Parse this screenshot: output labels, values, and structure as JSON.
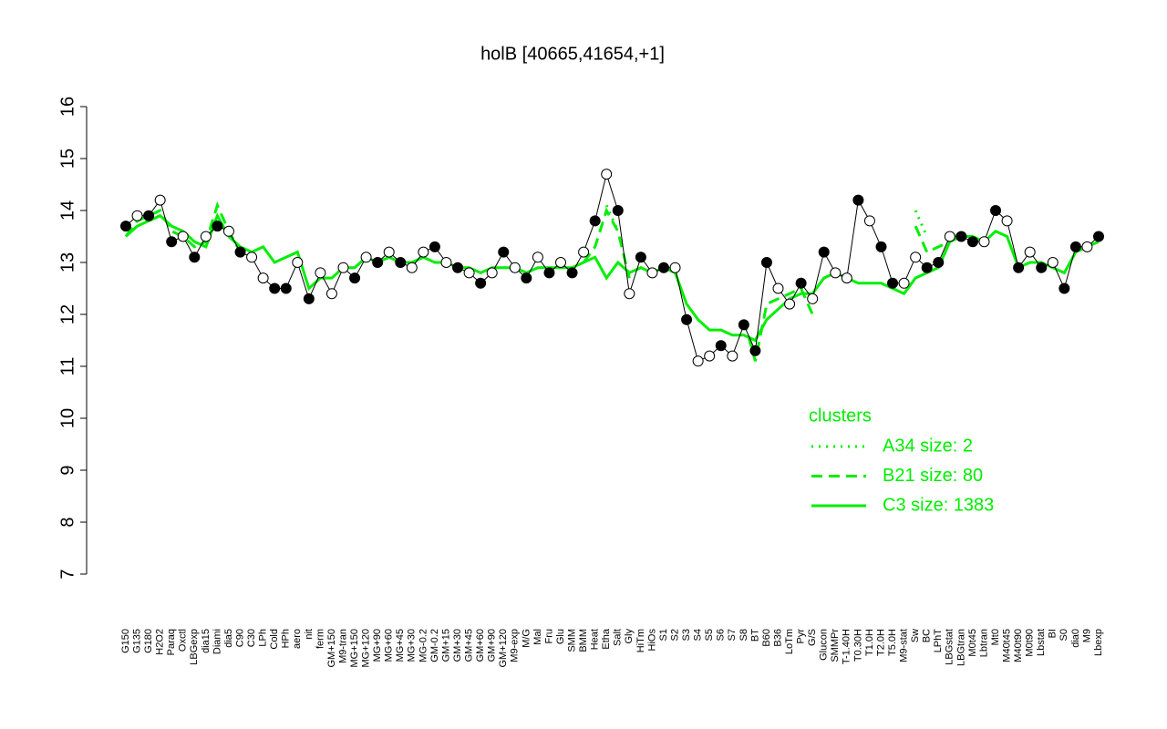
{
  "chart_data": {
    "type": "line",
    "title": "holB [40665,41654,+1]",
    "categories": [
      "G150",
      "G135",
      "G180",
      "H2O2",
      "Paraq",
      "Oxctl",
      "LBGexp",
      "dia15",
      "Diami",
      "dia5",
      "C90",
      "C30",
      "LPh",
      "Cold",
      "HPh",
      "aero",
      "nit",
      "ferm",
      "GM+150",
      "M9-tran",
      "MG+150",
      "MG+120",
      "MG+90",
      "MG+60",
      "MG+45",
      "MG+30",
      "MG-0.2",
      "GM-0.2",
      "GM+15",
      "GM+30",
      "GM+45",
      "GM+60",
      "GM+90",
      "GM+120",
      "M9-exp",
      "M/G",
      "Mal",
      "Fru",
      "Glu",
      "SMM",
      "BMM",
      "Heat",
      "Etha",
      "Salt",
      "Gly",
      "HiTm",
      "HiOs",
      "S1",
      "S2",
      "S3",
      "S4",
      "S5",
      "S6",
      "S7",
      "S8",
      "BT",
      "B60",
      "B36",
      "LoTm",
      "Pyr",
      "G/S",
      "Glucon",
      "SMMPr",
      "T-1.40H",
      "T0.30H",
      "T1.0H",
      "T2.0H",
      "T5.0H",
      "M9-stat",
      "Sw",
      "BC",
      "LPhT",
      "LBGstat",
      "LBGtran",
      "M0t45",
      "Lbtran",
      "Mt0",
      "M40t45",
      "M40t90",
      "M0t90",
      "Lbstat",
      "BI",
      "S0",
      "dia0",
      "M9",
      "Lbexp"
    ],
    "series": [
      {
        "color": "#000000",
        "values": [
          13.7,
          13.9,
          13.9,
          14.2,
          13.4,
          13.5,
          13.1,
          13.5,
          13.7,
          13.6,
          13.2,
          13.1,
          12.7,
          12.5,
          12.5,
          13.0,
          12.3,
          12.8,
          12.4,
          12.9,
          12.7,
          13.1,
          13.0,
          13.2,
          13.0,
          12.9,
          13.2,
          13.3,
          13.0,
          12.9,
          12.8,
          12.6,
          12.8,
          13.2,
          12.9,
          12.7,
          13.1,
          12.8,
          13.0,
          12.8,
          13.2,
          13.8,
          14.7,
          14.0,
          12.4,
          13.1,
          12.8,
          12.9,
          12.9,
          11.9,
          11.1,
          11.2,
          11.4,
          11.2,
          11.8,
          11.3,
          13.0,
          12.5,
          12.2,
          12.6,
          12.3,
          13.2,
          12.8,
          12.7,
          14.2,
          13.8,
          13.3,
          12.6,
          12.6,
          13.1,
          12.9,
          13.0,
          13.5,
          13.5,
          13.4,
          13.4,
          14.0,
          13.8,
          12.9,
          13.2,
          12.9,
          13.0,
          12.5,
          13.3,
          13.3,
          13.5
        ],
        "marker_fills": [
          "#000000",
          "#ffffff",
          "#000000",
          "#ffffff",
          "#000000",
          "#ffffff",
          "#000000",
          "#ffffff",
          "#000000",
          "#ffffff",
          "#000000",
          "#ffffff",
          "#ffffff",
          "#000000",
          "#000000",
          "#ffffff",
          "#000000",
          "#ffffff",
          "#ffffff",
          "#ffffff",
          "#000000",
          "#ffffff",
          "#000000",
          "#ffffff",
          "#000000",
          "#ffffff",
          "#ffffff",
          "#000000",
          "#ffffff",
          "#000000",
          "#ffffff",
          "#000000",
          "#ffffff",
          "#000000",
          "#ffffff",
          "#000000",
          "#ffffff",
          "#000000",
          "#ffffff",
          "#000000",
          "#ffffff",
          "#000000",
          "#ffffff",
          "#000000",
          "#ffffff",
          "#000000",
          "#ffffff",
          "#000000",
          "#ffffff",
          "#000000",
          "#ffffff",
          "#ffffff",
          "#000000",
          "#ffffff",
          "#000000",
          "#000000",
          "#000000",
          "#ffffff",
          "#ffffff",
          "#000000",
          "#ffffff",
          "#000000",
          "#ffffff",
          "#ffffff",
          "#000000",
          "#ffffff",
          "#000000",
          "#000000",
          "#ffffff",
          "#ffffff",
          "#000000",
          "#000000",
          "#ffffff",
          "#000000",
          "#000000",
          "#ffffff",
          "#000000",
          "#ffffff",
          "#000000",
          "#ffffff",
          "#000000",
          "#ffffff",
          "#000000",
          "#000000",
          "#ffffff",
          "#000000"
        ]
      },
      {
        "name": "A34 size: 2",
        "color": "#00ee00",
        "linestyle": "dotted",
        "values": [
          null,
          null,
          null,
          null,
          null,
          null,
          null,
          null,
          null,
          null,
          null,
          null,
          null,
          null,
          null,
          null,
          null,
          null,
          null,
          null,
          null,
          null,
          null,
          null,
          null,
          null,
          null,
          null,
          null,
          null,
          null,
          null,
          null,
          null,
          null,
          null,
          null,
          null,
          null,
          null,
          null,
          null,
          14.1,
          13.6,
          null,
          null,
          null,
          null,
          null,
          null,
          null,
          null,
          null,
          null,
          null,
          null,
          null,
          null,
          null,
          null,
          null,
          null,
          null,
          null,
          null,
          null,
          null,
          null,
          null,
          14.0,
          13.5,
          null,
          null,
          null,
          null,
          null,
          null,
          null,
          null,
          null,
          null,
          null,
          null,
          null,
          null,
          null
        ]
      },
      {
        "name": "B21 size: 80",
        "color": "#00ee00",
        "linestyle": "dashed",
        "values": [
          13.5,
          13.8,
          13.9,
          14.0,
          13.6,
          13.5,
          13.3,
          13.4,
          14.1,
          13.6,
          13.2,
          13.1,
          null,
          null,
          null,
          null,
          null,
          null,
          null,
          null,
          null,
          null,
          null,
          null,
          null,
          null,
          null,
          null,
          null,
          null,
          null,
          null,
          null,
          null,
          null,
          null,
          null,
          null,
          null,
          null,
          13.0,
          13.3,
          14.0,
          13.6,
          12.7,
          null,
          null,
          null,
          null,
          null,
          null,
          null,
          null,
          null,
          11.9,
          11.1,
          12.2,
          12.3,
          12.4,
          12.5,
          12.0,
          null,
          null,
          null,
          null,
          null,
          null,
          null,
          null,
          13.7,
          13.2,
          13.3,
          13.4,
          13.6,
          null,
          null,
          null,
          null,
          null,
          null,
          null,
          null,
          null,
          null,
          null,
          null
        ]
      },
      {
        "name": "C3 size: 1383",
        "color": "#00ee00",
        "linestyle": "solid",
        "values": [
          13.5,
          13.7,
          13.8,
          13.9,
          13.7,
          13.6,
          13.4,
          13.3,
          13.9,
          13.5,
          13.3,
          13.2,
          13.3,
          13.0,
          13.1,
          13.2,
          12.5,
          12.7,
          12.7,
          12.9,
          12.9,
          13.1,
          13.0,
          13.1,
          13.0,
          13.0,
          13.1,
          13.0,
          13.0,
          12.9,
          12.9,
          12.8,
          12.9,
          12.9,
          12.9,
          12.8,
          12.9,
          12.9,
          12.9,
          12.9,
          13.0,
          13.1,
          12.7,
          13.0,
          12.8,
          12.9,
          12.8,
          12.9,
          12.8,
          12.2,
          11.9,
          11.7,
          11.7,
          11.6,
          11.6,
          11.5,
          11.9,
          12.1,
          12.3,
          12.4,
          12.4,
          12.7,
          12.8,
          12.7,
          12.6,
          12.6,
          12.6,
          12.5,
          12.4,
          12.7,
          12.8,
          12.9,
          13.4,
          13.5,
          13.5,
          13.4,
          13.6,
          13.5,
          12.9,
          13.0,
          13.0,
          12.9,
          12.8,
          13.2,
          13.3,
          13.4
        ]
      }
    ],
    "legend_title": "clusters",
    "ylim": [
      7,
      16
    ],
    "yticks": [
      7,
      8,
      9,
      10,
      11,
      12,
      13,
      14,
      15,
      16
    ]
  }
}
